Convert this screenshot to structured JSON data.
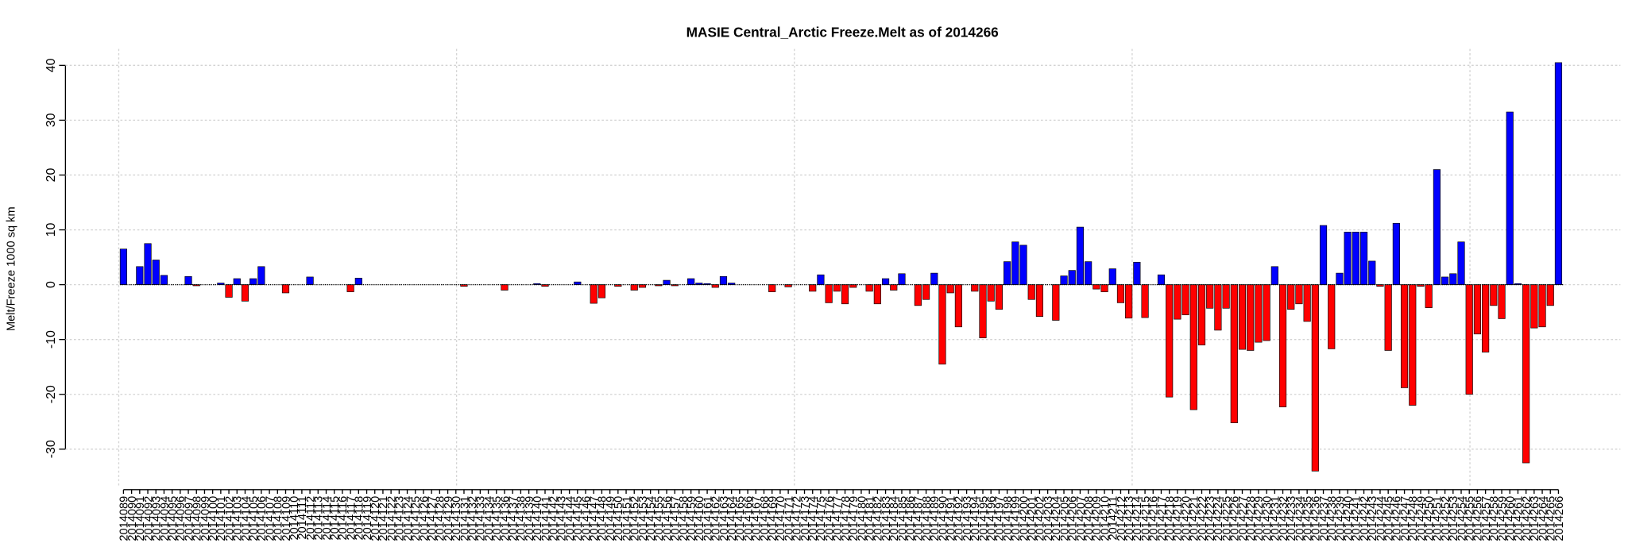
{
  "chart_data": {
    "type": "bar",
    "title": "MASIE Central_Arctic Freeze.Melt as of 2014266",
    "y_label": "Melt/Freeze 1000 sq km",
    "categories": [
      "2014089",
      "2014090",
      "2014091",
      "2014092",
      "2014093",
      "2014094",
      "2014095",
      "2014096",
      "2014097",
      "2014098",
      "2014099",
      "2014100",
      "2014101",
      "2014102",
      "2014103",
      "2014104",
      "2014105",
      "2014106",
      "2014107",
      "2014108",
      "2014109",
      "2014110",
      "2014111",
      "2014112",
      "2014113",
      "2014114",
      "2014115",
      "2014116",
      "2014117",
      "2014118",
      "2014119",
      "2014120",
      "2014121",
      "2014122",
      "2014123",
      "2014124",
      "2014125",
      "2014126",
      "2014127",
      "2014128",
      "2014129",
      "2014130",
      "2014131",
      "2014132",
      "2014133",
      "2014134",
      "2014135",
      "2014136",
      "2014137",
      "2014138",
      "2014139",
      "2014140",
      "2014141",
      "2014142",
      "2014143",
      "2014144",
      "2014145",
      "2014146",
      "2014147",
      "2014148",
      "2014149",
      "2014150",
      "2014151",
      "2014152",
      "2014153",
      "2014154",
      "2014155",
      "2014156",
      "2014157",
      "2014158",
      "2014159",
      "2014160",
      "2014161",
      "2014162",
      "2014163",
      "2014164",
      "2014165",
      "2014166",
      "2014167",
      "2014168",
      "2014169",
      "2014170",
      "2014171",
      "2014172",
      "2014173",
      "2014174",
      "2014175",
      "2014176",
      "2014177",
      "2014178",
      "2014179",
      "2014180",
      "2014181",
      "2014182",
      "2014183",
      "2014184",
      "2014185",
      "2014186",
      "2014187",
      "2014188",
      "2014189",
      "2014190",
      "2014191",
      "2014192",
      "2014193",
      "2014194",
      "2014195",
      "2014196",
      "2014197",
      "2014198",
      "2014199",
      "2014200",
      "2014201",
      "2014202",
      "2014203",
      "2014204",
      "2014205",
      "2014206",
      "2014207",
      "2014208",
      "2014209",
      "2014210",
      "2014211",
      "2014212",
      "2014213",
      "2014214",
      "2014215",
      "2014216",
      "2014217",
      "2014218",
      "2014219",
      "2014220",
      "2014221",
      "2014222",
      "2014223",
      "2014224",
      "2014225",
      "2014226",
      "2014227",
      "2014228",
      "2014229",
      "2014230",
      "2014231",
      "2014232",
      "2014233",
      "2014234",
      "2014235",
      "2014236",
      "2014237",
      "2014238",
      "2014239",
      "2014240",
      "2014241",
      "2014242",
      "2014243",
      "2014244",
      "2014245",
      "2014246",
      "2014247",
      "2014248",
      "2014249",
      "2014250",
      "2014251",
      "2014252",
      "2014253",
      "2014254",
      "2014255",
      "2014256",
      "2014257",
      "2014258",
      "2014259",
      "2014260",
      "2014261",
      "2014262",
      "2014263",
      "2014264",
      "2014265",
      "2014266"
    ],
    "values": [
      6.5,
      0,
      3.3,
      7.5,
      4.5,
      1.7,
      0,
      0,
      1.5,
      -0.2,
      0,
      0,
      0.3,
      -2.3,
      1.1,
      -3,
      1.1,
      3.3,
      0,
      0,
      -1.5,
      0,
      0,
      1.4,
      0,
      0,
      0,
      0,
      -1.3,
      1.2,
      0,
      0,
      0,
      0,
      0,
      0,
      0,
      0,
      0,
      0,
      0,
      0,
      -0.3,
      0,
      0,
      0,
      0,
      -1,
      0,
      0,
      0,
      0.2,
      -0.3,
      0,
      0,
      0,
      0.5,
      0,
      -3.4,
      -2.4,
      0,
      -0.3,
      0,
      -1,
      -0.5,
      0,
      -0.2,
      0.8,
      -0.2,
      0,
      1.1,
      0.3,
      0.2,
      -0.5,
      1.5,
      0.3,
      0,
      0,
      0,
      0,
      -1.3,
      0,
      -0.4,
      0,
      0,
      -1.2,
      1.8,
      -3.3,
      -1.2,
      -3.5,
      -0.5,
      0,
      -1.2,
      -3.5,
      1.1,
      -1,
      2,
      0,
      -3.8,
      -2.7,
      2.1,
      -14.5,
      -1.5,
      -7.7,
      0,
      -1.2,
      -9.7,
      -3,
      -4.5,
      4.2,
      7.8,
      7.2,
      -2.7,
      -5.8,
      0,
      -6.5,
      1.6,
      2.6,
      10.5,
      4.2,
      -0.8,
      -1.3,
      2.9,
      -3.3,
      -6.1,
      4.1,
      -6,
      0,
      1.8,
      -20.5,
      -6.3,
      -5.5,
      -22.8,
      -11,
      -4.3,
      -8.3,
      -4.3,
      -25.2,
      -11.8,
      -12,
      -10.5,
      -10.2,
      3.3,
      -22.3,
      -4.5,
      -3.5,
      -6.7,
      -34,
      10.8,
      -11.7,
      2.1,
      9.6,
      9.6,
      9.6,
      4.3,
      -0.3,
      -12,
      11.2,
      -18.8,
      -22,
      -0.3,
      -4.2,
      21,
      1.4,
      2,
      7.8,
      -20,
      -9,
      -12.3,
      -3.8,
      -6.2,
      31.5,
      0.2,
      -32.5,
      -7.9,
      -7.7,
      -3.8,
      40.5
    ],
    "positive_color": "#0000ff",
    "negative_color": "#ff0000",
    "ylim": [
      -37,
      43
    ],
    "yticks": [
      -30,
      -20,
      -10,
      0,
      10,
      20,
      30,
      40
    ],
    "grid": true
  }
}
